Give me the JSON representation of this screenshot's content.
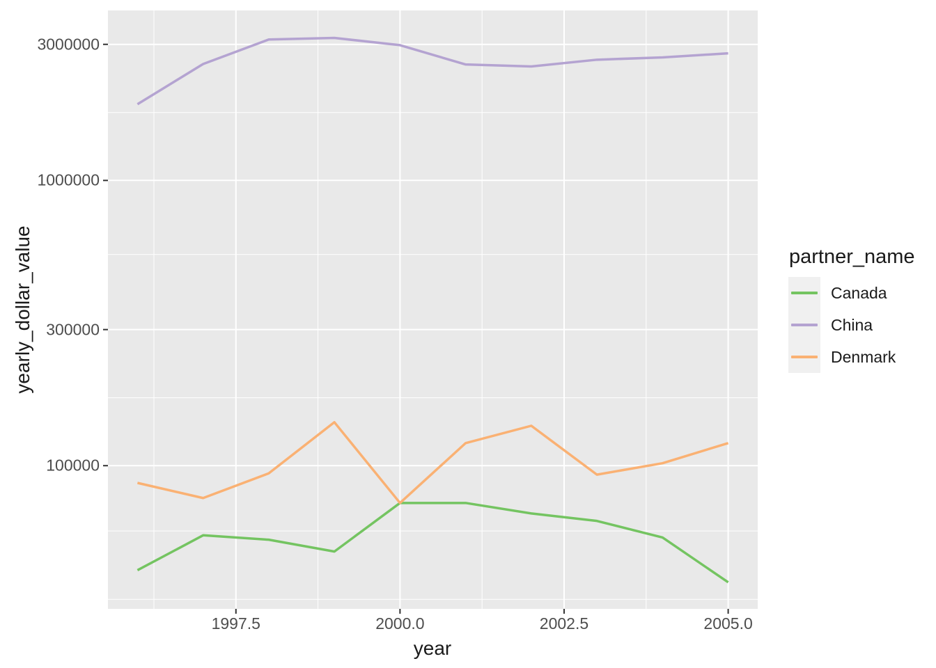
{
  "chart_data": {
    "type": "line",
    "title": "",
    "xlabel": "year",
    "ylabel": "yearly_dollar_value",
    "x": [
      1996,
      1997,
      1998,
      1999,
      2000,
      2001,
      2002,
      2003,
      2004,
      2005
    ],
    "series": [
      {
        "name": "Canada",
        "color": "#74C461",
        "values": [
          43000,
          57000,
          55000,
          50000,
          74000,
          74000,
          68000,
          64000,
          56000,
          39000
        ]
      },
      {
        "name": "China",
        "color": "#B4A3D1",
        "values": [
          1850000,
          2560000,
          3120000,
          3160000,
          2980000,
          2550000,
          2510000,
          2650000,
          2700000,
          2790000
        ]
      },
      {
        "name": "Denmark",
        "color": "#FAB173",
        "values": [
          87000,
          77000,
          94000,
          142000,
          74000,
          120000,
          138000,
          93000,
          102000,
          120000
        ]
      }
    ],
    "x_axis": {
      "ticks": [
        1997.5,
        2000.0,
        2002.5,
        2005.0
      ],
      "tick_labels": [
        "1997.5",
        "2000.0",
        "2002.5",
        "2005.0"
      ],
      "minor": [
        1996.25,
        1998.75,
        2001.25,
        2003.75
      ],
      "domain": [
        1995.55,
        2005.45
      ]
    },
    "y_axis": {
      "scale": "log10",
      "ticks": [
        3000000,
        1000000,
        300000,
        100000
      ],
      "tick_labels": [
        "3000000",
        "1000000",
        "300000",
        "100000"
      ],
      "minor": [
        1730000,
        550000,
        173000,
        59000,
        34000
      ],
      "domain_log10": [
        4.498,
        6.596
      ]
    },
    "panel": {
      "background": "#E9E9E9",
      "grid_color": "#FFFFFF",
      "tick_mark_color": "#333333"
    },
    "legend": {
      "title": "partner_name",
      "key_background": "#F0F0F0",
      "entries": [
        {
          "label": "Canada",
          "color": "#74C461"
        },
        {
          "label": "China",
          "color": "#B4A3D1"
        },
        {
          "label": "Denmark",
          "color": "#FAB173"
        }
      ]
    },
    "grid": true,
    "legend_position": "right"
  }
}
